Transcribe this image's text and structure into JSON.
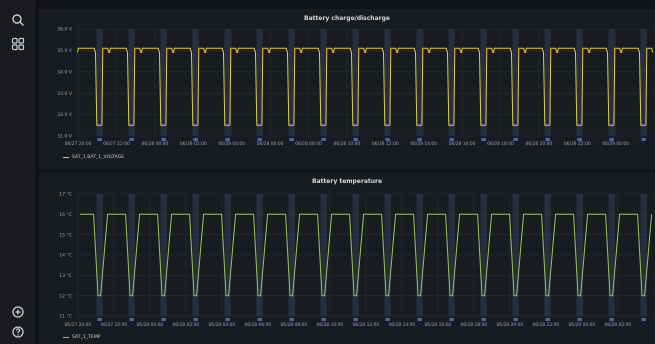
{
  "sidebar": {
    "top_icons": [
      "search-icon",
      "dashboards-icon"
    ],
    "bottom_icons": [
      "plus-circle-icon",
      "help-icon"
    ]
  },
  "colors": {
    "voltage_line": "#e8c84a",
    "temp_line": "#9ac85c",
    "band_fill": "#5578a8",
    "marker": "#3d6bb5"
  },
  "x_ticks": [
    "06/27 20:00",
    "06/27 22:00",
    "06/28 00:00",
    "06/28 02:00",
    "06/28 04:00",
    "06/28 06:00",
    "06/28 08:00",
    "06/28 10:00",
    "06/28 12:00",
    "06/28 14:00",
    "06/28 16:00",
    "06/28 18:00",
    "06/28 20:00",
    "06/28 22:00",
    "06/29 00:00",
    "06/29 02:00"
  ],
  "panels": [
    {
      "title": "Battery charge/discharge",
      "legend": "SAT_1.BAT_1_VOLTAGE",
      "color_key": "voltage_line",
      "y_ticks": [
        "36.0 V",
        "35.0 V",
        "34.0 V",
        "33.0 V",
        "32.0 V",
        "31.0 V"
      ],
      "y_range": [
        31,
        36
      ],
      "x_ticks_shown": 15,
      "chart_data": {
        "type": "line",
        "series": [
          {
            "name": "SAT_1.BAT_1_VOLTAGE",
            "high": 35.1,
            "mid": 34.9,
            "low": 31.5,
            "cycles": 18
          }
        ]
      }
    },
    {
      "title": "Battery temperature",
      "legend": "SAT_1_TEMP",
      "color_key": "temp_line",
      "y_ticks": [
        "17 °C",
        "16 °C",
        "15 °C",
        "14 °C",
        "13 °C",
        "12 °C",
        "11 °C"
      ],
      "y_range": [
        11,
        17
      ],
      "x_ticks_shown": 16,
      "chart_data": {
        "type": "line",
        "series": [
          {
            "name": "SAT_1_TEMP",
            "high": 16,
            "low": 12,
            "cycles": 18
          }
        ]
      }
    }
  ]
}
